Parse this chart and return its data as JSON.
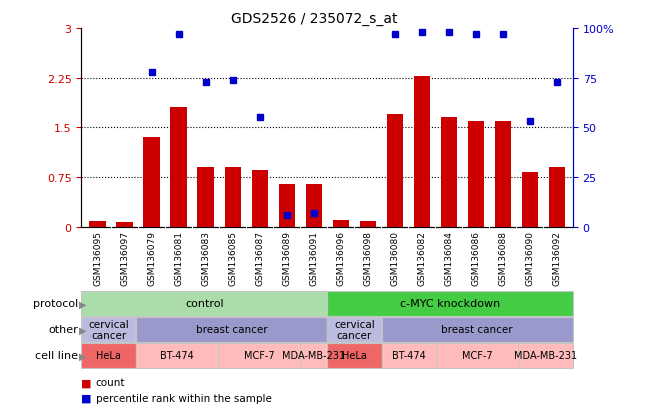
{
  "title": "GDS2526 / 235072_s_at",
  "samples": [
    "GSM136095",
    "GSM136097",
    "GSM136079",
    "GSM136081",
    "GSM136083",
    "GSM136085",
    "GSM136087",
    "GSM136089",
    "GSM136091",
    "GSM136096",
    "GSM136098",
    "GSM136080",
    "GSM136082",
    "GSM136084",
    "GSM136086",
    "GSM136088",
    "GSM136090",
    "GSM136092"
  ],
  "bar_values": [
    0.08,
    0.07,
    1.35,
    1.8,
    0.9,
    0.9,
    0.85,
    0.65,
    0.65,
    0.1,
    0.08,
    1.7,
    2.28,
    1.65,
    1.6,
    1.6,
    0.82,
    0.9
  ],
  "dot_values_pct": [
    0,
    0,
    78,
    97,
    73,
    74,
    55,
    6,
    7,
    0,
    0,
    97,
    98,
    98,
    97,
    97,
    53,
    73
  ],
  "dot_show": [
    false,
    false,
    true,
    true,
    true,
    true,
    true,
    true,
    true,
    false,
    false,
    true,
    true,
    true,
    true,
    true,
    true,
    true
  ],
  "bar_color": "#cc0000",
  "dot_color": "#0000cc",
  "ylim_left": [
    0,
    3
  ],
  "ylim_right": [
    0,
    100
  ],
  "yticks_left": [
    0,
    0.75,
    1.5,
    2.25,
    3
  ],
  "yticks_right": [
    0,
    25,
    50,
    75,
    100
  ],
  "ytick_labels_left": [
    "0",
    "0.75",
    "1.5",
    "2.25",
    "3"
  ],
  "ytick_labels_right": [
    "0",
    "25",
    "50",
    "75",
    "100%"
  ],
  "protocol_groups": [
    {
      "label": "control",
      "start": 0,
      "end": 9,
      "color": "#aaddaa"
    },
    {
      "label": "c-MYC knockdown",
      "start": 9,
      "end": 18,
      "color": "#44cc44"
    }
  ],
  "other_groups": [
    {
      "label": "cervical\ncancer",
      "start": 0,
      "end": 2,
      "color": "#bbbbdd"
    },
    {
      "label": "breast cancer",
      "start": 2,
      "end": 9,
      "color": "#9999cc"
    },
    {
      "label": "cervical\ncancer",
      "start": 9,
      "end": 11,
      "color": "#bbbbdd"
    },
    {
      "label": "breast cancer",
      "start": 11,
      "end": 18,
      "color": "#9999cc"
    }
  ],
  "cell_line_groups": [
    {
      "label": "HeLa",
      "start": 0,
      "end": 2,
      "color": "#ee6666"
    },
    {
      "label": "BT-474",
      "start": 2,
      "end": 5,
      "color": "#ffbbbb"
    },
    {
      "label": "MCF-7",
      "start": 5,
      "end": 8,
      "color": "#ffbbbb"
    },
    {
      "label": "MDA-MB-231",
      "start": 8,
      "end": 9,
      "color": "#ffbbbb"
    },
    {
      "label": "HeLa",
      "start": 9,
      "end": 11,
      "color": "#ee6666"
    },
    {
      "label": "BT-474",
      "start": 11,
      "end": 13,
      "color": "#ffbbbb"
    },
    {
      "label": "MCF-7",
      "start": 13,
      "end": 16,
      "color": "#ffbbbb"
    },
    {
      "label": "MDA-MB-231",
      "start": 16,
      "end": 18,
      "color": "#ffbbbb"
    }
  ],
  "row_labels": [
    "protocol",
    "other",
    "cell line"
  ],
  "legend_items": [
    {
      "label": "count",
      "color": "#cc0000"
    },
    {
      "label": "percentile rank within the sample",
      "color": "#0000cc"
    }
  ],
  "bg_color": "#ffffff",
  "plot_bg_color": "#ffffff",
  "xtick_bg": "#cccccc"
}
